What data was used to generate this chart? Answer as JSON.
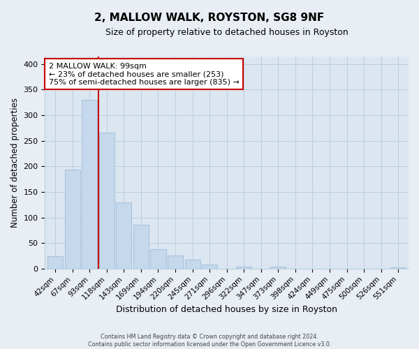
{
  "title": "2, MALLOW WALK, ROYSTON, SG8 9NF",
  "subtitle": "Size of property relative to detached houses in Royston",
  "xlabel": "Distribution of detached houses by size in Royston",
  "ylabel": "Number of detached properties",
  "bar_labels": [
    "42sqm",
    "67sqm",
    "93sqm",
    "118sqm",
    "143sqm",
    "169sqm",
    "194sqm",
    "220sqm",
    "245sqm",
    "271sqm",
    "296sqm",
    "322sqm",
    "347sqm",
    "373sqm",
    "398sqm",
    "424sqm",
    "449sqm",
    "475sqm",
    "500sqm",
    "526sqm",
    "551sqm"
  ],
  "bar_heights": [
    25,
    193,
    330,
    266,
    130,
    86,
    38,
    26,
    17,
    8,
    0,
    4,
    0,
    4,
    0,
    0,
    0,
    0,
    0,
    0,
    3
  ],
  "bar_color": "#c5d8ec",
  "bar_edge_color": "#a8c4de",
  "vline_x": 2.5,
  "vline_color": "#cc0000",
  "annotation_text": "2 MALLOW WALK: 99sqm\n← 23% of detached houses are smaller (253)\n75% of semi-detached houses are larger (835) →",
  "annotation_box_color": "#ffffff",
  "annotation_box_edge": "#cc0000",
  "ylim": [
    0,
    415
  ],
  "yticks": [
    0,
    50,
    100,
    150,
    200,
    250,
    300,
    350,
    400
  ],
  "footer_line1": "Contains HM Land Registry data © Crown copyright and database right 2024.",
  "footer_line2": "Contains public sector information licensed under the Open Government Licence v3.0.",
  "background_color": "#e8eef4",
  "plot_bg_color": "#dce6f0",
  "grid_color": "#b8cfe0"
}
